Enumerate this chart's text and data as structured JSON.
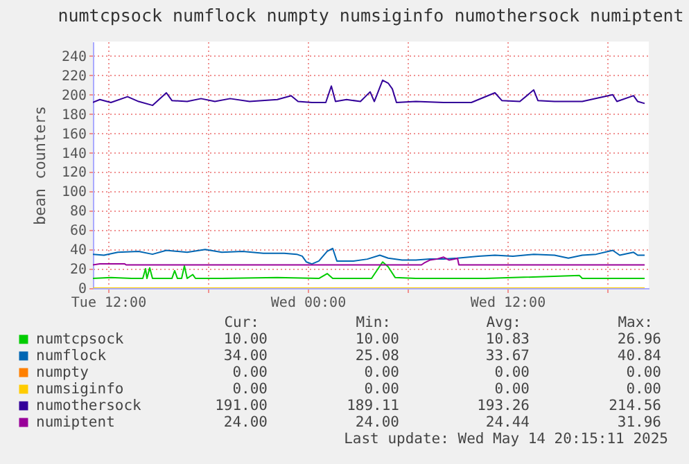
{
  "chart_data": {
    "type": "line",
    "title": "numtcpsock numflock numpty numsiginfo numothersock numiptent",
    "ylabel": "bean counters",
    "xlim": [
      "2025-05-13T11:05",
      "2025-05-14T20:30"
    ],
    "xticks": [
      {
        "value": "2025-05-13T12:00",
        "label": "Tue 12:00"
      },
      {
        "value": "2025-05-13T18:00",
        "label": null
      },
      {
        "value": "2025-05-14T00:00",
        "label": "Wed 00:00"
      },
      {
        "value": "2025-05-14T06:00",
        "label": null
      },
      {
        "value": "2025-05-14T12:00",
        "label": "Wed 12:00"
      },
      {
        "value": "2025-05-14T18:00",
        "label": null
      }
    ],
    "ylim": [
      0,
      255
    ],
    "yticks": [
      0,
      20,
      40,
      60,
      80,
      100,
      120,
      140,
      160,
      180,
      200,
      220,
      240
    ],
    "grid": true,
    "legend": "bottom",
    "series": [
      {
        "name": "numtcpsock",
        "color": "#00cc00",
        "x": [
          "2025-05-13T11:05",
          "2025-05-13T12:10",
          "2025-05-13T13:25",
          "2025-05-13T14:05",
          "2025-05-13T14:15",
          "2025-05-13T14:20",
          "2025-05-13T14:30",
          "2025-05-13T14:40",
          "2025-05-13T15:50",
          "2025-05-13T16:00",
          "2025-05-13T16:10",
          "2025-05-13T16:25",
          "2025-05-13T16:35",
          "2025-05-13T16:45",
          "2025-05-13T17:05",
          "2025-05-13T17:15",
          "2025-05-13T18:50",
          "2025-05-13T22:10",
          "2025-05-14T00:40",
          "2025-05-14T01:10",
          "2025-05-14T01:30",
          "2025-05-14T03:50",
          "2025-05-14T04:30",
          "2025-05-14T04:50",
          "2025-05-14T05:15",
          "2025-05-14T06:30",
          "2025-05-14T10:40",
          "2025-05-14T16:20",
          "2025-05-14T16:30",
          "2025-05-14T20:15"
        ],
        "values": [
          10,
          11,
          10,
          10,
          20,
          10,
          21,
          10,
          10,
          18,
          10,
          10,
          23,
          10,
          14,
          10,
          10,
          11,
          10,
          15,
          10,
          10,
          27,
          22,
          11,
          10,
          10,
          13,
          10,
          10
        ]
      },
      {
        "name": "numflock",
        "color": "#0066b3",
        "x": [
          "2025-05-13T11:05",
          "2025-05-13T11:45",
          "2025-05-13T12:35",
          "2025-05-13T13:50",
          "2025-05-13T14:40",
          "2025-05-13T15:30",
          "2025-05-13T16:45",
          "2025-05-13T17:50",
          "2025-05-13T18:50",
          "2025-05-13T20:05",
          "2025-05-13T21:20",
          "2025-05-13T22:35",
          "2025-05-13T23:20",
          "2025-05-13T23:40",
          "2025-05-13T23:55",
          "2025-05-14T00:15",
          "2025-05-14T00:40",
          "2025-05-14T01:10",
          "2025-05-14T01:30",
          "2025-05-14T01:45",
          "2025-05-14T02:45",
          "2025-05-14T03:35",
          "2025-05-14T04:20",
          "2025-05-14T04:50",
          "2025-05-14T05:40",
          "2025-05-14T06:30",
          "2025-05-14T07:20",
          "2025-05-14T08:10",
          "2025-05-14T09:00",
          "2025-05-14T10:15",
          "2025-05-14T11:15",
          "2025-05-14T12:20",
          "2025-05-14T13:35",
          "2025-05-14T14:50",
          "2025-05-14T15:40",
          "2025-05-14T16:30",
          "2025-05-14T17:20",
          "2025-05-14T18:20",
          "2025-05-14T18:45",
          "2025-05-14T19:35",
          "2025-05-14T19:50",
          "2025-05-14T20:15"
        ],
        "values": [
          35,
          34,
          37,
          38,
          35,
          39,
          37,
          40,
          37,
          38,
          36,
          36,
          35,
          33,
          27,
          25,
          28,
          38,
          41,
          28,
          28,
          30,
          34,
          31,
          29,
          29,
          30,
          30,
          31,
          33,
          34,
          33,
          35,
          34,
          31,
          34,
          35,
          39,
          34,
          37,
          34,
          34
        ]
      },
      {
        "name": "numpty",
        "color": "#ff8000"
      },
      {
        "name": "numsiginfo",
        "color": "#ffcc00",
        "x": [
          "2025-05-13T11:05",
          "2025-05-14T20:15"
        ],
        "values": [
          0,
          0
        ]
      },
      {
        "name": "numothersock",
        "color": "#330099",
        "x": [
          "2025-05-13T11:05",
          "2025-05-13T11:30",
          "2025-05-13T12:10",
          "2025-05-13T13:10",
          "2025-05-13T13:50",
          "2025-05-13T14:40",
          "2025-05-13T15:30",
          "2025-05-13T15:50",
          "2025-05-13T16:45",
          "2025-05-13T17:35",
          "2025-05-13T18:25",
          "2025-05-13T19:20",
          "2025-05-13T20:30",
          "2025-05-13T22:10",
          "2025-05-13T23:00",
          "2025-05-13T23:25",
          "2025-05-14T00:15",
          "2025-05-14T01:05",
          "2025-05-14T01:25",
          "2025-05-14T01:40",
          "2025-05-14T02:20",
          "2025-05-14T03:10",
          "2025-05-14T03:45",
          "2025-05-14T04:00",
          "2025-05-14T04:30",
          "2025-05-14T04:50",
          "2025-05-14T05:05",
          "2025-05-14T05:20",
          "2025-05-14T06:30",
          "2025-05-14T08:10",
          "2025-05-14T09:50",
          "2025-05-14T11:15",
          "2025-05-14T11:40",
          "2025-05-14T12:45",
          "2025-05-14T13:35",
          "2025-05-14T13:50",
          "2025-05-14T14:50",
          "2025-05-14T16:30",
          "2025-05-14T18:20",
          "2025-05-14T18:35",
          "2025-05-14T19:35",
          "2025-05-14T19:50",
          "2025-05-14T20:15"
        ],
        "values": [
          192,
          195,
          192,
          198,
          193,
          189,
          202,
          194,
          193,
          196,
          193,
          196,
          193,
          195,
          199,
          193,
          192,
          192,
          209,
          193,
          195,
          193,
          203,
          193,
          215,
          212,
          206,
          192,
          193,
          192,
          192,
          202,
          194,
          193,
          205,
          194,
          193,
          193,
          200,
          193,
          199,
          193,
          191
        ]
      },
      {
        "name": "numiptent",
        "color": "#990099",
        "x": [
          "2025-05-13T11:05",
          "2025-05-13T11:30",
          "2025-05-13T13:00",
          "2025-05-13T13:05",
          "2025-05-14T06:50",
          "2025-05-14T07:00",
          "2025-05-14T07:20",
          "2025-05-14T07:45",
          "2025-05-14T08:10",
          "2025-05-14T08:30",
          "2025-05-14T08:50",
          "2025-05-14T09:00",
          "2025-05-14T09:05",
          "2025-05-14T20:15"
        ],
        "values": [
          24,
          25,
          25,
          24,
          24,
          26,
          29,
          30,
          32,
          29,
          30,
          31,
          24,
          24
        ]
      }
    ],
    "annotations": [
      "Cur:",
      "Min:",
      "Avg:",
      "Max:",
      "10.00",
      "10.00",
      "10.83",
      "26.96",
      "34.00",
      "25.08",
      "33.67",
      "40.84",
      "0.00",
      "0.00",
      "0.00",
      "0.00",
      "0.00",
      "0.00",
      "0.00",
      "0.00",
      "191.00",
      "189.11",
      "193.26",
      "214.56",
      "24.00",
      "24.00",
      "24.44",
      "31.96",
      "Last update: Wed May 14 20:15:11 2025"
    ]
  }
}
